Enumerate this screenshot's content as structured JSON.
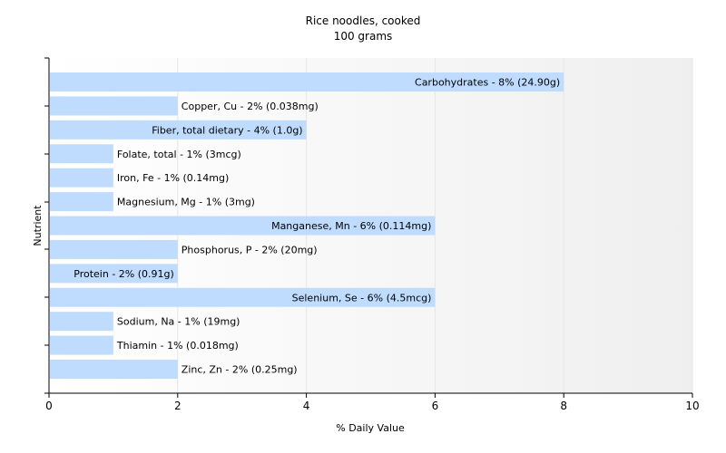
{
  "chart_data": {
    "type": "bar",
    "orientation": "horizontal",
    "title": "Rice noodles, cooked",
    "subtitle": "100 grams",
    "xlabel": "% Daily Value",
    "ylabel": "Nutrient",
    "xlim": [
      0,
      10
    ],
    "xticks": [
      0,
      2,
      4,
      6,
      8,
      10
    ],
    "grid": true,
    "bar_color": "#bfdcff",
    "categories": [
      "Carbohydrates",
      "Copper, Cu",
      "Fiber, total dietary",
      "Folate, total",
      "Iron, Fe",
      "Magnesium, Mg",
      "Manganese, Mn",
      "Phosphorus, P",
      "Protein",
      "Selenium, Se",
      "Sodium, Na",
      "Thiamin",
      "Zinc, Zn"
    ],
    "values": [
      8,
      2,
      4,
      1,
      1,
      1,
      6,
      2,
      2,
      6,
      1,
      1,
      2
    ],
    "labels": [
      "Carbohydrates - 8% (24.90g)",
      "Copper, Cu - 2% (0.038mg)",
      "Fiber, total dietary - 4% (1.0g)",
      "Folate, total - 1% (3mcg)",
      "Iron, Fe - 1% (0.14mg)",
      "Magnesium, Mg - 1% (3mg)",
      "Manganese, Mn - 6% (0.114mg)",
      "Phosphorus, P - 2% (20mg)",
      "Protein - 2% (0.91g)",
      "Selenium, Se - 6% (4.5mcg)",
      "Sodium, Na - 1% (19mg)",
      "Thiamin - 1% (0.018mg)",
      "Zinc, Zn - 2% (0.25mg)"
    ]
  }
}
